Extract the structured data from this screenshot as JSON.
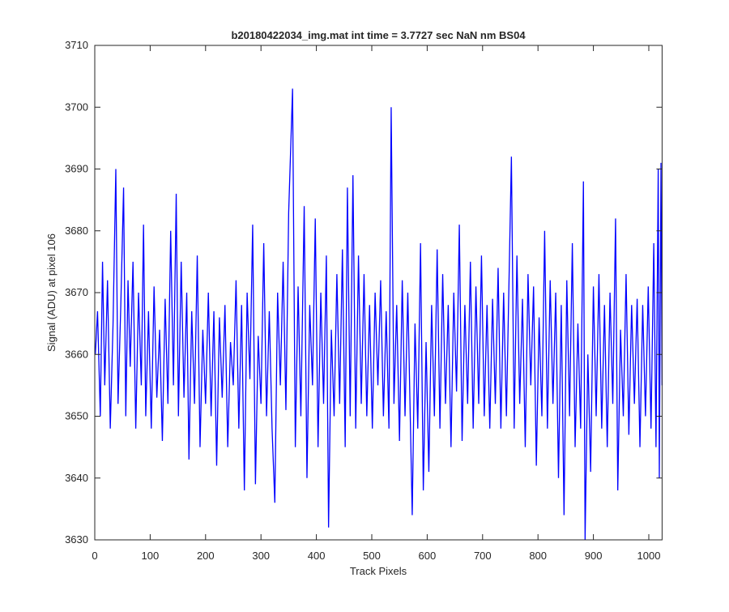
{
  "chart_data": {
    "type": "line",
    "title": "b20180422034_img.mat int time = 3.7727 sec  NaN nm BS04",
    "x_label": "Track Pixels",
    "y_label": "Signal (ADU) at pixel 106",
    "xlim": [
      0,
      1024
    ],
    "ylim": [
      3630,
      3710
    ],
    "xticks": [
      0,
      100,
      200,
      300,
      400,
      500,
      600,
      700,
      800,
      900,
      1000
    ],
    "yticks": [
      3630,
      3640,
      3650,
      3660,
      3670,
      3680,
      3690,
      3700,
      3710
    ],
    "grid": false,
    "series": [
      {
        "color": "#0000ff",
        "x": [
          1,
          5,
          10,
          14,
          18,
          23,
          28,
          33,
          38,
          42,
          47,
          52,
          56,
          60,
          64,
          69,
          74,
          79,
          84,
          88,
          92,
          97,
          102,
          107,
          112,
          117,
          122,
          127,
          132,
          137,
          142,
          147,
          151,
          156,
          161,
          166,
          170,
          175,
          180,
          185,
          190,
          195,
          200,
          205,
          210,
          215,
          220,
          225,
          230,
          235,
          240,
          245,
          250,
          255,
          260,
          265,
          270,
          275,
          280,
          285,
          290,
          295,
          300,
          305,
          310,
          315,
          320,
          325,
          330,
          335,
          340,
          345,
          350,
          357,
          362,
          367,
          372,
          378,
          383,
          388,
          393,
          398,
          403,
          408,
          413,
          418,
          422,
          427,
          432,
          437,
          442,
          447,
          452,
          456,
          461,
          466,
          471,
          476,
          481,
          486,
          491,
          496,
          501,
          506,
          511,
          516,
          521,
          526,
          531,
          535,
          540,
          545,
          550,
          555,
          560,
          565,
          573,
          578,
          583,
          588,
          593,
          598,
          603,
          608,
          613,
          618,
          623,
          628,
          633,
          638,
          643,
          648,
          653,
          658,
          663,
          668,
          673,
          678,
          683,
          688,
          693,
          698,
          703,
          708,
          713,
          718,
          723,
          728,
          733,
          738,
          743,
          752,
          757,
          762,
          767,
          772,
          777,
          782,
          787,
          792,
          797,
          802,
          807,
          812,
          817,
          822,
          827,
          832,
          837,
          842,
          847,
          852,
          857,
          862,
          867,
          872,
          877,
          882,
          885,
          890,
          895,
          900,
          905,
          910,
          915,
          920,
          925,
          930,
          935,
          940,
          944,
          949,
          954,
          959,
          964,
          969,
          974,
          979,
          984,
          989,
          994,
          999,
          1004,
          1009,
          1013,
          1017,
          1019,
          1022,
          1024
        ],
        "values": [
          3660,
          3667,
          3650,
          3675,
          3655,
          3672,
          3648,
          3665,
          3690,
          3652,
          3668,
          3687,
          3650,
          3672,
          3658,
          3675,
          3648,
          3670,
          3655,
          3681,
          3650,
          3667,
          3648,
          3671,
          3653,
          3664,
          3646,
          3669,
          3652,
          3680,
          3655,
          3686,
          3650,
          3675,
          3653,
          3670,
          3643,
          3667,
          3652,
          3676,
          3645,
          3664,
          3652,
          3670,
          3650,
          3667,
          3642,
          3666,
          3653,
          3668,
          3645,
          3662,
          3655,
          3672,
          3648,
          3668,
          3638,
          3670,
          3656,
          3681,
          3639,
          3663,
          3652,
          3678,
          3650,
          3667,
          3648,
          3636,
          3670,
          3655,
          3675,
          3651,
          3683,
          3703,
          3645,
          3671,
          3650,
          3684,
          3640,
          3668,
          3655,
          3682,
          3645,
          3670,
          3652,
          3676,
          3632,
          3664,
          3650,
          3673,
          3652,
          3677,
          3645,
          3687,
          3650,
          3689,
          3648,
          3676,
          3652,
          3673,
          3650,
          3668,
          3648,
          3670,
          3655,
          3672,
          3650,
          3667,
          3648,
          3700,
          3652,
          3668,
          3646,
          3672,
          3650,
          3670,
          3634,
          3665,
          3648,
          3678,
          3638,
          3662,
          3641,
          3668,
          3650,
          3677,
          3648,
          3673,
          3652,
          3668,
          3645,
          3670,
          3654,
          3681,
          3646,
          3668,
          3652,
          3675,
          3648,
          3671,
          3652,
          3676,
          3650,
          3668,
          3648,
          3669,
          3652,
          3674,
          3648,
          3670,
          3650,
          3692,
          3648,
          3676,
          3652,
          3669,
          3645,
          3673,
          3655,
          3671,
          3642,
          3666,
          3650,
          3680,
          3648,
          3672,
          3652,
          3670,
          3640,
          3668,
          3634,
          3672,
          3650,
          3678,
          3645,
          3665,
          3648,
          3688,
          3630,
          3660,
          3641,
          3671,
          3650,
          3673,
          3648,
          3668,
          3645,
          3670,
          3652,
          3682,
          3638,
          3664,
          3650,
          3673,
          3647,
          3668,
          3652,
          3669,
          3645,
          3668,
          3650,
          3671,
          3648,
          3678,
          3645,
          3690,
          3640,
          3691,
          3655
        ]
      }
    ]
  }
}
